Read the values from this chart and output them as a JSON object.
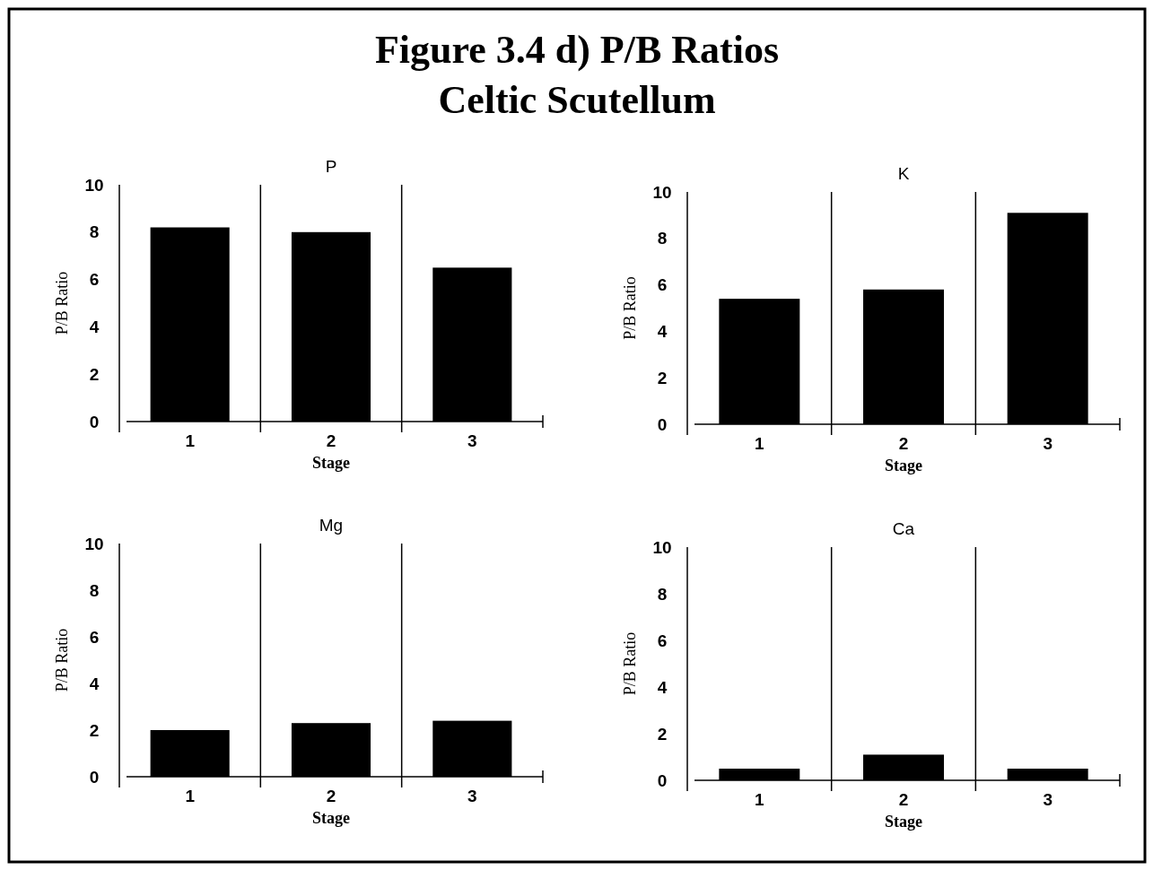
{
  "chart_data": [
    {
      "type": "bar",
      "title": "P",
      "annotations": [
        "Figure 3.4 d) P/B Ratios",
        "Celtic Scutellum"
      ],
      "xlabel": "Stage",
      "ylabel": "P/B Ratio",
      "categories": [
        "1",
        "2",
        "3"
      ],
      "values": [
        8.2,
        8.0,
        6.5
      ],
      "color": "#000000",
      "ylim": [
        0,
        10
      ],
      "yticks": [
        0,
        2,
        4,
        6,
        8,
        10
      ],
      "grid": "x"
    },
    {
      "type": "bar",
      "title": "K",
      "xlabel": "Stage",
      "ylabel": "P/B Ratio",
      "categories": [
        "1",
        "2",
        "3"
      ],
      "values": [
        5.4,
        5.8,
        9.1
      ],
      "color": "#000000",
      "ylim": [
        0,
        10
      ],
      "yticks": [
        0,
        2,
        4,
        6,
        8,
        10
      ],
      "grid": "x"
    },
    {
      "type": "bar",
      "title": "Mg",
      "xlabel": "Stage",
      "ylabel": "P/B Ratio",
      "categories": [
        "1",
        "2",
        "3"
      ],
      "values": [
        2.0,
        2.3,
        2.4
      ],
      "color": "#000000",
      "ylim": [
        0,
        10
      ],
      "yticks": [
        0,
        2,
        4,
        6,
        8,
        10
      ],
      "grid": "x"
    },
    {
      "type": "bar",
      "title": "Ca",
      "xlabel": "Stage",
      "ylabel": "P/B Ratio",
      "categories": [
        "1",
        "2",
        "3"
      ],
      "values": [
        0.5,
        1.1,
        0.5
      ],
      "color": "#000000",
      "ylim": [
        0,
        10
      ],
      "yticks": [
        0,
        2,
        4,
        6,
        8,
        10
      ],
      "grid": "x"
    }
  ]
}
